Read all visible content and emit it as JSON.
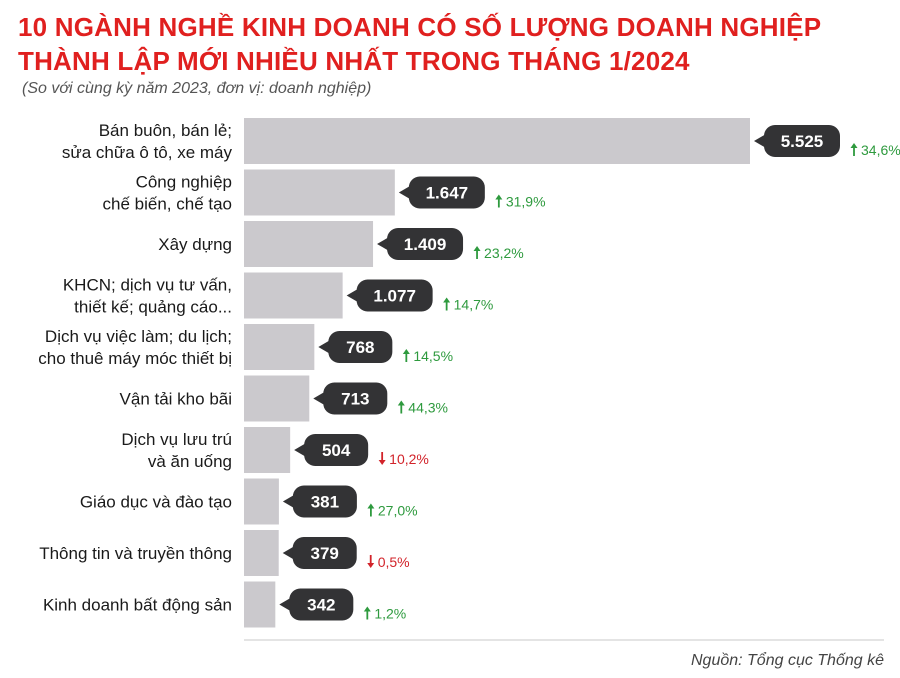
{
  "title_line1": "10 NGÀNH NGHỀ KINH DOANH CÓ SỐ LƯỢNG DOANH NGHIỆP",
  "title_line2": "THÀNH LẬP MỚI NHIỀU NHẤT TRONG THÁNG 1/2024",
  "subtitle": "(So với cùng kỳ năm 2023, đơn vị: doanh nghiệp)",
  "source": "Nguồn: Tổng cục Thống kê",
  "colors": {
    "title": "#e0201f",
    "bar": "#cbc9cd",
    "bubble": "#333335",
    "up": "#2e9a3e",
    "down": "#d2232a"
  },
  "chart_data": {
    "type": "bar",
    "orientation": "horizontal",
    "xlim": [
      0,
      5525
    ],
    "categories": [
      [
        "Bán buôn, bán lẻ;",
        "sửa chữa ô tô, xe máy"
      ],
      [
        "Công nghiệp",
        "chế biến, chế tạo"
      ],
      [
        "Xây dựng"
      ],
      [
        "KHCN; dịch vụ tư vấn,",
        "thiết kế; quảng cáo..."
      ],
      [
        "Dịch vụ việc làm; du lịch;",
        "cho thuê máy móc thiết bị"
      ],
      [
        "Vận tải kho bãi"
      ],
      [
        "Dịch vụ lưu trú",
        "và ăn uống"
      ],
      [
        "Giáo dục và đào tạo"
      ],
      [
        "Thông tin và truyền thông"
      ],
      [
        "Kinh doanh bất động sản"
      ]
    ],
    "values": [
      5525,
      1647,
      1409,
      1077,
      768,
      713,
      504,
      381,
      379,
      342
    ],
    "value_labels": [
      "5.525",
      "1.647",
      "1.409",
      "1.077",
      "768",
      "713",
      "504",
      "381",
      "379",
      "342"
    ],
    "changes": [
      "34,6%",
      "31,9%",
      "23,2%",
      "14,7%",
      "14,5%",
      "44,3%",
      "10,2%",
      "27,0%",
      "0,5%",
      "1,2%"
    ],
    "change_direction": [
      "up",
      "up",
      "up",
      "up",
      "up",
      "up",
      "down",
      "up",
      "down",
      "up"
    ]
  }
}
